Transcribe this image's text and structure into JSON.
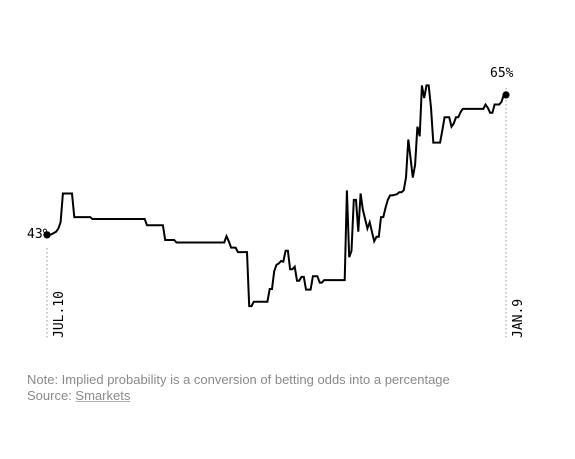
{
  "chart_data": {
    "type": "line",
    "x_range_labels": [
      "JUL.10",
      "JAN.9"
    ],
    "ylim": [
      25,
      72
    ],
    "grid": false,
    "series": [
      {
        "values": [
          43,
          43,
          43.1,
          43.3,
          43.5,
          44,
          45,
          49.5,
          49.5,
          49.5,
          49.5,
          49.5,
          45.8,
          45.8,
          45.8,
          45.8,
          45.8,
          45.8,
          45.8,
          45.8,
          45.5,
          45.5,
          45.5,
          45.5,
          45.5,
          45.5,
          45.5,
          45.5,
          45.5,
          45.5,
          45.5,
          45.5,
          45.5,
          45.5,
          45.5,
          45.5,
          45.5,
          45.5,
          45.5,
          45.5,
          45.5,
          45.5,
          45.5,
          45.5,
          44.5,
          44.5,
          44.5,
          44.5,
          44.5,
          44.5,
          44.5,
          44.5,
          42.2,
          42.2,
          42.2,
          42.2,
          42.2,
          41.8,
          41.8,
          41.8,
          41.8,
          41.8,
          41.8,
          41.8,
          41.8,
          41.8,
          41.8,
          41.8,
          41.8,
          41.8,
          41.8,
          41.8,
          41.8,
          41.8,
          41.8,
          41.8,
          41.8,
          41.8,
          41.8,
          42.8,
          42,
          41,
          41,
          41,
          40.3,
          40.3,
          40.3,
          40.3,
          40.3,
          31.8,
          31.8,
          32.5,
          32.5,
          32.5,
          32.5,
          32.5,
          32.5,
          32.5,
          34.5,
          34.5,
          37.3,
          38.3,
          38.5,
          38.9,
          38.8,
          40.5,
          40.5,
          37.6,
          37.6,
          38,
          35.8,
          35.8,
          36.4,
          36.4,
          34.4,
          34.4,
          34.4,
          36.5,
          36.5,
          36.5,
          35.5,
          35.5,
          35.9,
          35.9,
          35.9,
          35.9,
          35.9,
          35.9,
          35.9,
          35.9,
          35.9,
          35.9,
          50,
          39.5,
          40.5,
          48.5,
          48.5,
          43.5,
          49.5,
          47,
          45.5,
          44,
          45,
          43.5,
          42,
          42.7,
          42.7,
          45.8,
          45.8,
          47.3,
          48.5,
          49.2,
          49.2,
          49.3,
          49.4,
          49.7,
          49.7,
          50,
          52,
          58,
          55,
          52,
          54,
          60,
          58.5,
          66.5,
          64.5,
          66.5,
          66.5,
          63,
          57.5,
          57.5,
          57.5,
          57.5,
          59.5,
          61.5,
          61.5,
          61.5,
          60,
          60.5,
          61.5,
          61.5,
          62.3,
          62.8,
          62.8,
          62.8,
          62.8,
          62.8,
          62.8,
          62.8,
          62.8,
          62.8,
          62.8,
          63.5,
          63,
          62.2,
          62.2,
          63.5,
          63.5,
          63.5,
          63.9,
          65,
          65
        ]
      }
    ],
    "end_labels": {
      "start": "43%",
      "end": "65%"
    }
  },
  "footer": {
    "note": "Note: Implied probability is a conversion of betting odds into a percentage",
    "source_prefix": "Source: ",
    "source_link": "Smarkets"
  }
}
